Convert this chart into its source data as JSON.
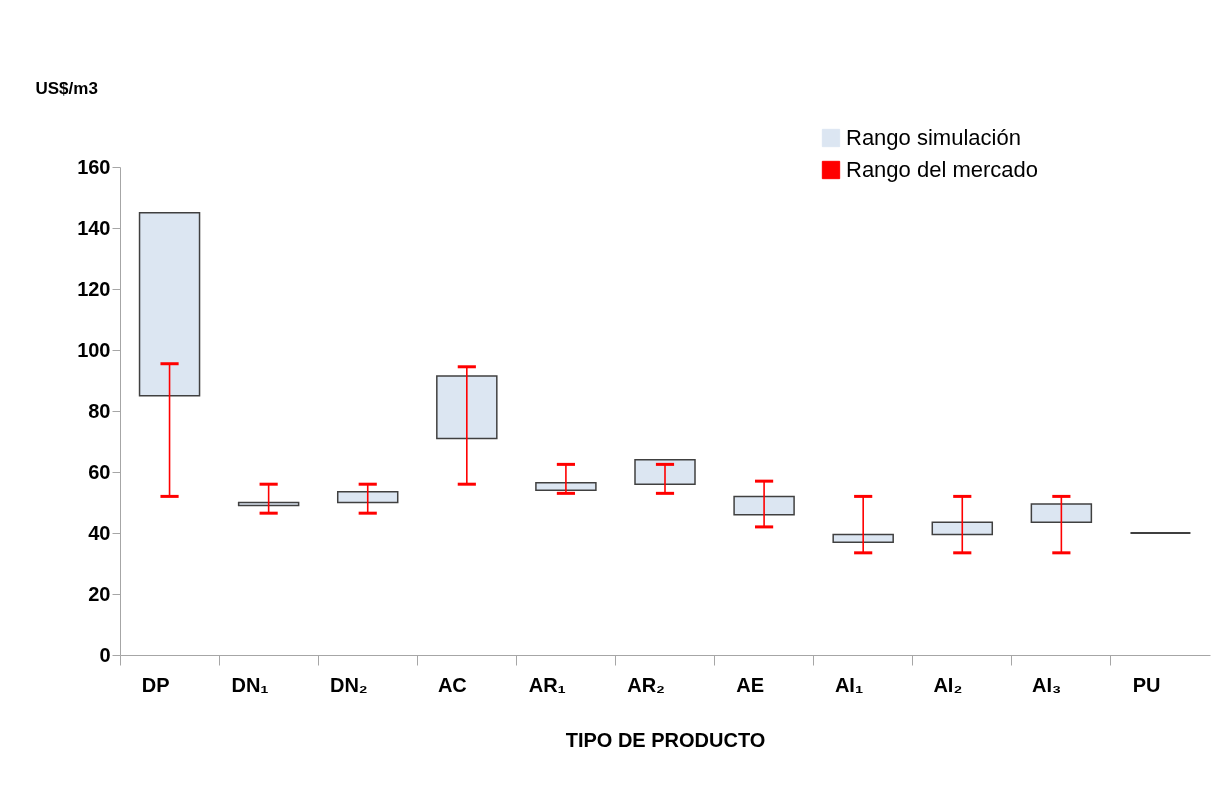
{
  "chart_data": {
    "type": "bar",
    "xlabel": "TIPO DE PRODUCTO",
    "ylabel": "US$/m3",
    "categories": [
      "DP",
      "DN₁",
      "DN₂",
      "AC",
      "AR₁",
      "AR₂",
      "AE",
      "AI₁",
      "AI₂",
      "AI₃",
      "PU"
    ],
    "series": [
      {
        "name": "Rango simulación",
        "color": "#dce6f2",
        "colors": [
          "#dce6f2",
          "#dce6f2",
          "#dce6f2",
          "#dce6f2",
          "#dce6f2",
          "#dce6f2",
          "#dce6f2",
          "#dce6f2",
          "#dce6f2",
          "#dce6f2",
          "#000000"
        ],
        "base": [
          85,
          49,
          50,
          71,
          54,
          56,
          46,
          37,
          39.5,
          43.5,
          40
        ],
        "values": [
          60,
          1,
          3.5,
          20.5,
          2.5,
          8,
          6,
          2.5,
          4,
          6,
          0
        ]
      },
      {
        "name": "Rango del mercado",
        "color": "#ff0000",
        "base": [
          52,
          46.5,
          46.5,
          56,
          53,
          53,
          42,
          33.5,
          33.5,
          33.5,
          null
        ],
        "values": [
          43.5,
          9.5,
          9.5,
          38.5,
          9.5,
          9.5,
          15,
          18.5,
          18.5,
          18.5,
          null
        ]
      }
    ],
    "ylim": [
      0,
      160
    ],
    "yticks": [
      0,
      20,
      40,
      60,
      80,
      100,
      120,
      140,
      160
    ],
    "legend": "top right"
  }
}
